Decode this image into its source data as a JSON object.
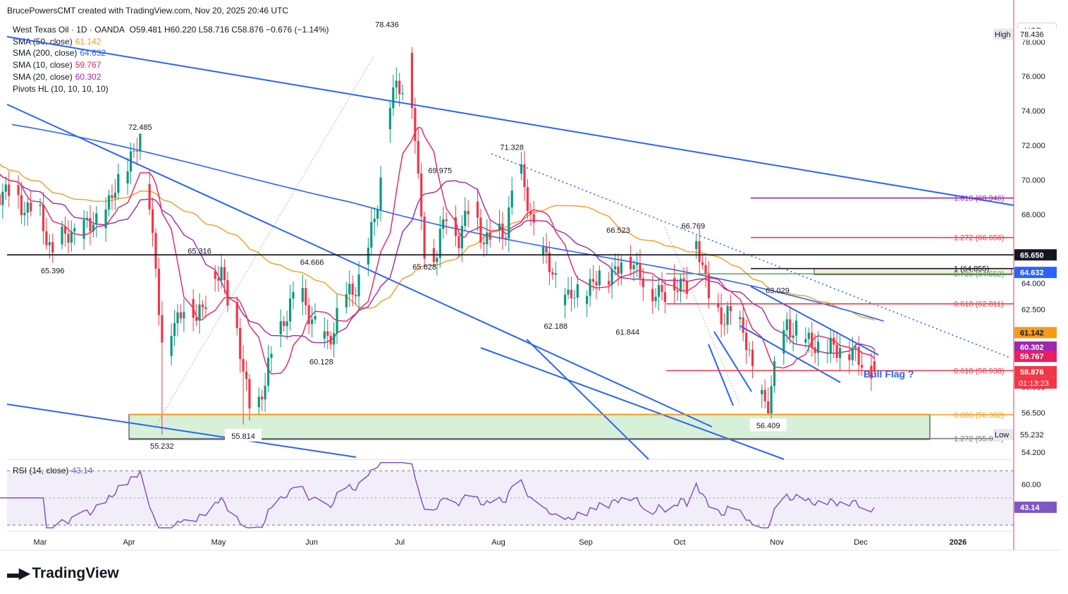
{
  "header": "BrucePowersCMT created with TradingView.com, Nov 20, 2025 20:46 UTC",
  "legend": {
    "title": "West Texas Oil · 1D · OANDA",
    "ohlc": "O59.481  H60.220  L58.716  C58.876  −0.676 (−1.14%)",
    "items": [
      {
        "label": "SMA (50, close)",
        "value": "61.142",
        "color": "#f59b1a"
      },
      {
        "label": "SMA (200, close)",
        "value": "64.632",
        "color": "#2962ff"
      },
      {
        "label": "SMA (10, close)",
        "value": "59.767",
        "color": "#e91e63"
      },
      {
        "label": "SMA (20, close)",
        "value": "60.302",
        "color": "#9c27b0"
      },
      {
        "label": "Pivots HL (10, 10, 10, 10)",
        "value": "",
        "color": "#131722"
      }
    ]
  },
  "rsi_legend": {
    "label": "RSI (14, close)",
    "value": "43.14"
  },
  "currency": "USD",
  "brand": "TradingView",
  "annotation": "Bull Flag ?",
  "chart_data": [
    {
      "type": "candlestick",
      "symbol": "West Texas Oil",
      "ylim": [
        53.8,
        79.2
      ],
      "y_ticks": [
        "54.200",
        "56.500",
        "58.000",
        "62.500",
        "64.000",
        "68.000",
        "70.000",
        "72.000",
        "74.000",
        "76.000",
        "78.000"
      ],
      "x_labels": [
        "Mar",
        "Apr",
        "May",
        "Jun",
        "Jul",
        "Aug",
        "Sep",
        "Oct",
        "Nov",
        "Dec",
        "2026"
      ],
      "pivots": [
        {
          "label": "78.436",
          "x": "Jun 20",
          "y": 78.436
        },
        {
          "label": "72.485",
          "x": "Apr 2",
          "y": 72.485
        },
        {
          "label": "71.328",
          "x": "Jul 30",
          "y": 71.328
        },
        {
          "label": "69.975",
          "x": "Jul 7",
          "y": 69.975
        },
        {
          "label": "66.523",
          "x": "Sep 2",
          "y": 66.523
        },
        {
          "label": "66.769",
          "x": "Sep 26",
          "y": 66.769
        },
        {
          "label": "65.316",
          "x": "Apr 21",
          "y": 65.316
        },
        {
          "label": "64.666",
          "x": "May 27",
          "y": 64.666
        },
        {
          "label": "65.396",
          "x": "Mar 5",
          "y": 65.396
        },
        {
          "label": "65.628",
          "x": "Jul 2",
          "y": 65.628
        },
        {
          "label": "63.029",
          "x": "Oct 23",
          "y": 63.029
        },
        {
          "label": "62.188",
          "x": "Aug 13",
          "y": 62.188
        },
        {
          "label": "61.844",
          "x": "Sep 5",
          "y": 61.844
        },
        {
          "label": "60.128",
          "x": "May 30",
          "y": 60.128
        },
        {
          "label": "55.814",
          "x": "May 5",
          "y": 55.814
        },
        {
          "label": "55.232",
          "x": "Apr 9",
          "y": 55.232
        },
        {
          "label": "56.409",
          "x": "Oct 20",
          "y": 56.409
        }
      ],
      "fib_levels": [
        {
          "label": "1.618 (68.946)",
          "y": 68.946,
          "color": "#9c27b0"
        },
        {
          "label": "1.272 (66.656)",
          "y": 66.656,
          "color": "#f23645"
        },
        {
          "label": "1 (64.855)",
          "y": 64.855,
          "color": "#131722"
        },
        {
          "label": "0.786 (64.552)",
          "y": 64.552,
          "color": "#4caf50"
        },
        {
          "label": "0.618 (62.811)",
          "y": 62.811,
          "color": "#f23645"
        },
        {
          "label": "0.618 (58.938)",
          "y": 58.938,
          "color": "#f23645"
        },
        {
          "label": "0.886 (56.382)",
          "y": 56.382,
          "color": "#f59b1a"
        },
        {
          "label": "1.272 (55.0…)",
          "y": 55.0,
          "color": "#787b86"
        }
      ],
      "price_badges": [
        {
          "label": "High",
          "value": "78.436",
          "y": 78.436,
          "bg": "#e8eaf0",
          "fg": "#131722"
        },
        {
          "label": "",
          "value": "65.650",
          "y": 65.65,
          "bg": "#131722",
          "fg": "#ffffff"
        },
        {
          "label": "",
          "value": "64.632",
          "y": 64.632,
          "bg": "#2962ff",
          "fg": "#ffffff"
        },
        {
          "label": "",
          "value": "61.142",
          "y": 61.142,
          "bg": "#f59b1a",
          "fg": "#131722"
        },
        {
          "label": "",
          "value": "60.302",
          "y": 60.302,
          "bg": "#9c27b0",
          "fg": "#ffffff"
        },
        {
          "label": "",
          "value": "59.767",
          "y": 59.767,
          "bg": "#e91e63",
          "fg": "#ffffff"
        },
        {
          "label": "",
          "value": "58.876",
          "y": 58.876,
          "bg": "#f23645",
          "fg": "#ffffff"
        },
        {
          "label": "Low",
          "value": "55.232",
          "y": 55.232,
          "bg": "#e8eaf0",
          "fg": "#131722"
        }
      ],
      "countdown": "01:13:23",
      "horizontal_lines": [
        {
          "y": 65.65,
          "color": "#131722"
        }
      ]
    },
    {
      "type": "line",
      "name": "RSI (14, close)",
      "ylim": [
        26,
        78
      ],
      "y_ticks": [
        "60.00"
      ],
      "bands": [
        70,
        30
      ],
      "last": 43.14
    }
  ]
}
